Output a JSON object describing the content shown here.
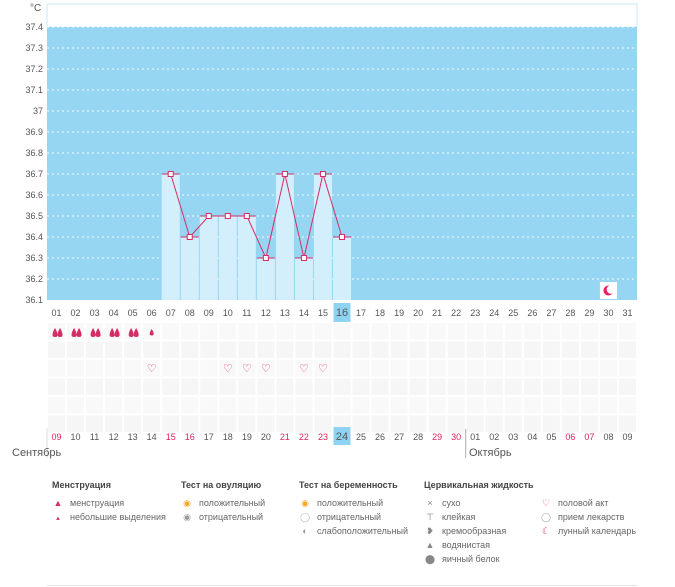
{
  "colors": {
    "chart_bg": "#97d6f2",
    "bar_fill": "#d3effc",
    "line": "#d42e66",
    "red_day": "#e0245e",
    "today_bg": "#8fd3f2"
  },
  "chart_data": {
    "type": "line",
    "yunit": "°C",
    "ylim": [
      36.1,
      37.4
    ],
    "yticks": [
      "36.1",
      "36.2",
      "36.3",
      "36.4",
      "36.5",
      "36.6",
      "36.7",
      "36.8",
      "36.9",
      "37",
      "37.1",
      "37.2",
      "37.3",
      "37.4"
    ],
    "cycle_days": [
      "01",
      "02",
      "03",
      "04",
      "05",
      "06",
      "07",
      "08",
      "09",
      "10",
      "11",
      "12",
      "13",
      "14",
      "15",
      "16",
      "17",
      "18",
      "19",
      "20",
      "21",
      "22",
      "23",
      "24",
      "25",
      "26",
      "27",
      "28",
      "29",
      "30",
      "31"
    ],
    "series": [
      {
        "values": [
          null,
          null,
          null,
          null,
          null,
          null,
          36.7,
          36.4,
          36.5,
          36.5,
          36.5,
          36.3,
          36.7,
          36.3,
          36.7,
          36.4,
          null,
          null,
          null,
          null,
          null,
          null,
          null,
          null,
          null,
          null,
          null,
          null,
          null,
          null,
          null
        ]
      }
    ],
    "current_day": "16",
    "grid": true
  },
  "calendar": {
    "dates": [
      "09",
      "10",
      "11",
      "12",
      "13",
      "14",
      "15",
      "16",
      "17",
      "18",
      "19",
      "20",
      "21",
      "22",
      "23",
      "24",
      "25",
      "26",
      "27",
      "28",
      "29",
      "30",
      "01",
      "02",
      "03",
      "04",
      "05",
      "06",
      "07",
      "08",
      "09"
    ],
    "red_indices": [
      0,
      6,
      7,
      12,
      13,
      14,
      20,
      21,
      27,
      28
    ],
    "today_index": 15,
    "months": [
      "Сентябрь",
      "Октябрь"
    ]
  },
  "markers": {
    "menstruation": {
      "big": [
        0,
        1,
        2,
        3,
        4
      ],
      "small": [
        5
      ]
    },
    "intercourse": [
      5,
      9,
      10,
      11,
      13,
      14
    ],
    "lunar": [
      29
    ]
  },
  "legend": {
    "menstruation": {
      "title": "Менструация",
      "items": [
        {
          "icon": "drop-big",
          "label": "менструация"
        },
        {
          "icon": "drop-small",
          "label": "небольшие выделения"
        }
      ]
    },
    "ovulation": {
      "title": "Тест на овуляцию",
      "items": [
        {
          "icon": "ovulation-positive",
          "label": "положительный"
        },
        {
          "icon": "ovulation-negative",
          "label": "отрицательный"
        }
      ]
    },
    "pregnancy": {
      "title": "Тест на беременность",
      "items": [
        {
          "icon": "pregnancy-positive",
          "label": "положительный"
        },
        {
          "icon": "pregnancy-negative",
          "label": "отрицательный"
        },
        {
          "icon": "pregnancy-weak",
          "label": "слабоположительный"
        }
      ]
    },
    "cervical": {
      "title": "Цервикальная жидкость",
      "items": [
        {
          "icon": "dry",
          "label": "сухо"
        },
        {
          "icon": "sticky",
          "label": "клейкая"
        },
        {
          "icon": "creamy",
          "label": "кремообразная"
        },
        {
          "icon": "watery",
          "label": "водянистая"
        },
        {
          "icon": "egg-white",
          "label": "яичный белок"
        }
      ]
    },
    "other": {
      "items": [
        {
          "icon": "heart",
          "label": "половой акт"
        },
        {
          "icon": "pill",
          "label": "прием лекарств"
        },
        {
          "icon": "moon",
          "label": "лунный календарь"
        }
      ]
    }
  }
}
